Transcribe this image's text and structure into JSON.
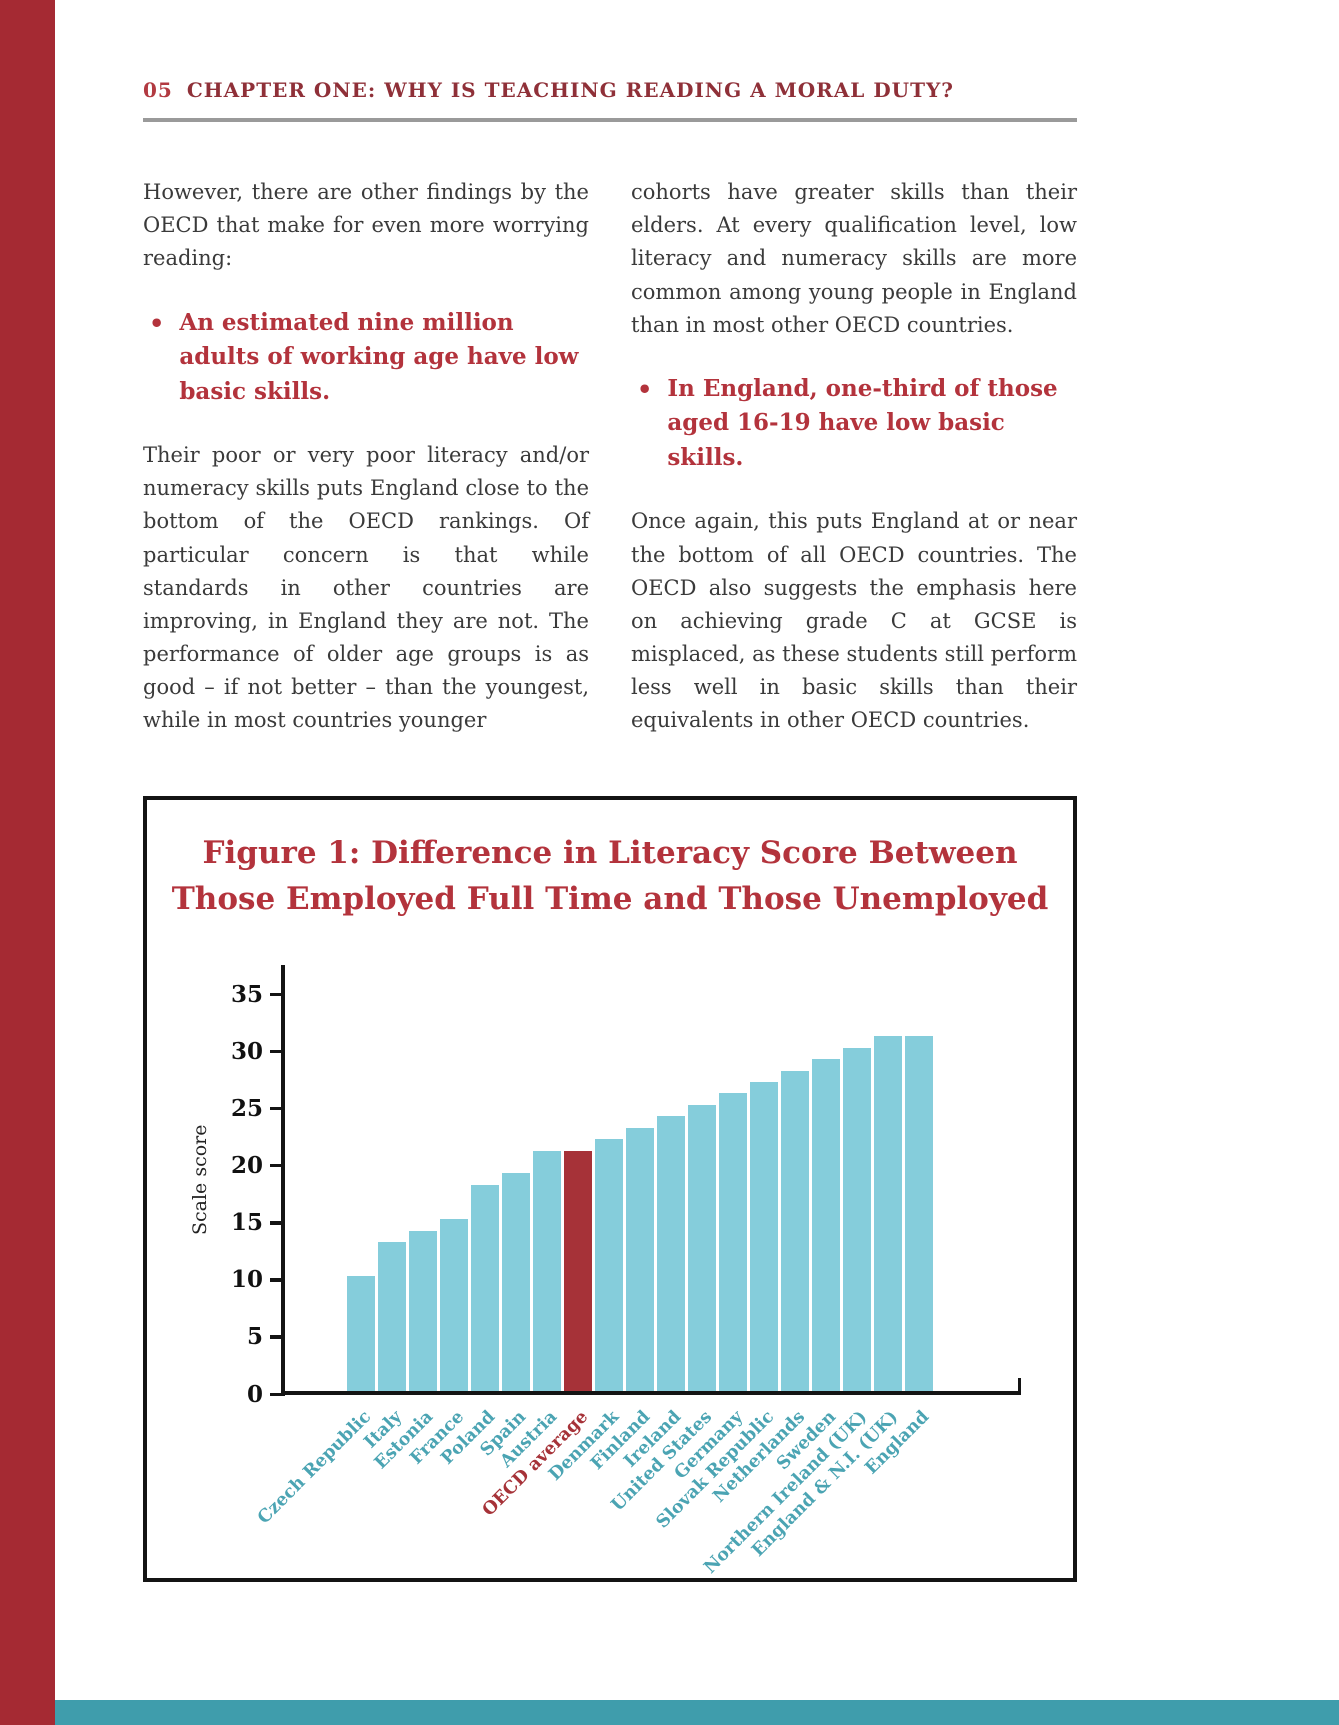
{
  "header": {
    "page_number": "05",
    "chapter_title": "CHAPTER ONE: WHY IS TEACHING READING A MORAL DUTY?"
  },
  "ui": {
    "bullet_marker": "•"
  },
  "body": {
    "left_intro": "However, there are other findings by the OECD that make for even more worrying reading:",
    "left_bullet": "An estimated nine million adults of working age have low basic skills.",
    "left_paragraph": "Their poor or very poor literacy and/or numeracy skills puts England close to the bottom of the OECD rankings. Of particular concern is that while standards in other countries are improving, in England they are not. The performance of older age groups is as good – if not better – than the youngest, while in most countries younger",
    "right_paragraph_1": "cohorts have greater skills than their elders. At every qualification level, low literacy and numeracy skills are more common among young people in England than in most other OECD countries.",
    "right_bullet": "In England, one-third of those aged 16-19 have low basic skills.",
    "right_paragraph_2": "Once again, this puts England at or near the bottom of all OECD countries. The OECD also suggests the emphasis here on achieving grade C at GCSE is misplaced, as these students still perform less well in basic skills than their equivalents in other OECD countries."
  },
  "figure": {
    "title_line1": "Figure 1: Difference in Literacy Score Between",
    "title_line2": "Those Employed Full Time and Those Unemployed"
  },
  "chart_data": {
    "type": "bar",
    "title": "Figure 1: Difference in Literacy Score Between Those Employed Full Time and Those Unemployed",
    "xlabel": "",
    "ylabel": "Scale score",
    "ylim": [
      0,
      35
    ],
    "yticks": [
      0,
      5,
      10,
      15,
      20,
      25,
      30,
      35
    ],
    "grid": false,
    "legend_position": "none",
    "categories": [
      "Czech Republic",
      "Italy",
      "Estonia",
      "France",
      "Poland",
      "Spain",
      "Austria",
      "OECD average",
      "Denmark",
      "Finland",
      "Ireland",
      "United States",
      "Germany",
      "Slovak Republic",
      "Netherlands",
      "Sweden",
      "Northern Ireland (UK)",
      "England & N.I. (UK)",
      "England"
    ],
    "values": [
      10,
      13,
      14,
      15,
      18,
      19,
      21,
      21,
      22,
      23,
      24,
      25,
      26,
      27,
      28,
      29,
      30,
      31,
      31
    ],
    "highlight_category": "OECD average",
    "bar_color": "#85cddb",
    "highlight_color": "#a63238",
    "label_color": "#4ba4b3"
  },
  "colors": {
    "accent_red": "#b3333c",
    "sidebar_red": "#a52a33",
    "footer_teal": "#3f9dac",
    "rule_gray": "#9a9a9a"
  }
}
